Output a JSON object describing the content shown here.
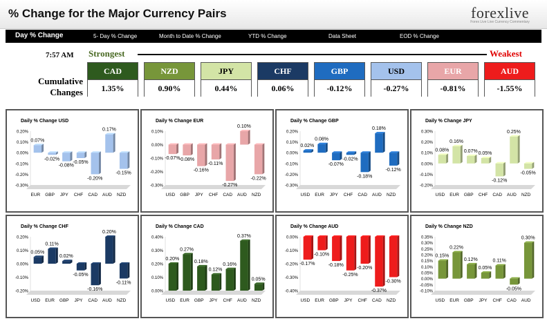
{
  "header": {
    "title": "% Change for the Major Currency Pairs",
    "logo_text": "forexlive",
    "logo_sub": "Forex Live Live Currency Commentary"
  },
  "nav": {
    "items": [
      "Day % Change",
      "5- Day % Change",
      "Month to Date % Change",
      "YTD % Change",
      "Data Sheet",
      "EOD % Change"
    ]
  },
  "summary": {
    "time": "7:57 AM",
    "strongest_label": "Strongest",
    "weakest_label": "Weakest",
    "cumulative_label_1": "Cumulative",
    "cumulative_label_2": "Changes",
    "currencies": [
      {
        "name": "CAD",
        "value": "1.35%",
        "color": "#2e5a1e",
        "text_color": "#ffffff"
      },
      {
        "name": "NZD",
        "value": "0.90%",
        "color": "#77963a",
        "text_color": "#ffffff"
      },
      {
        "name": "JPY",
        "value": "0.44%",
        "color": "#d3e4a6",
        "text_color": "#000000"
      },
      {
        "name": "CHF",
        "value": "0.06%",
        "color": "#1b3a64",
        "text_color": "#ffffff"
      },
      {
        "name": "GBP",
        "value": "-0.12%",
        "color": "#1f6cc0",
        "text_color": "#ffffff"
      },
      {
        "name": "USD",
        "value": "-0.27%",
        "color": "#a4c2ec",
        "text_color": "#000000"
      },
      {
        "name": "EUR",
        "value": "-0.81%",
        "color": "#e8a6a8",
        "text_color": "#ffffff"
      },
      {
        "name": "AUD",
        "value": "-1.55%",
        "color": "#ee1c1c",
        "text_color": "#ffffff"
      }
    ]
  },
  "chart_data": [
    {
      "type": "bar",
      "title": "Daily % Change USD",
      "categories": [
        "EUR",
        "GBP",
        "JPY",
        "CHF",
        "CAD",
        "AUD",
        "NZD"
      ],
      "values": [
        0.07,
        -0.02,
        -0.08,
        -0.05,
        -0.2,
        0.17,
        -0.15
      ],
      "labels": [
        "0.07%",
        "-0.02%",
        "-0.08%",
        "-0.05%",
        "-0.20%",
        "0.17%",
        "-0.15%"
      ],
      "yticks": [
        "0.20%",
        "0.10%",
        "0.00%",
        "-0.10%",
        "-0.20%",
        "-0.30%"
      ],
      "ylim": [
        -0.3,
        0.2
      ],
      "color": "#a4c2ec"
    },
    {
      "type": "bar",
      "title": "Daily % Change EUR",
      "categories": [
        "USD",
        "GBP",
        "JPY",
        "CHF",
        "CAD",
        "AUD",
        "NZD"
      ],
      "values": [
        -0.07,
        -0.08,
        -0.16,
        -0.11,
        -0.27,
        0.1,
        -0.22
      ],
      "labels": [
        "-0.07%",
        "-0.08%",
        "-0.16%",
        "-0.11%",
        "-0.27%",
        "0.10%",
        "-0.22%"
      ],
      "yticks": [
        "0.10%",
        "0.00%",
        "-0.10%",
        "-0.20%",
        "-0.30%"
      ],
      "ylim": [
        -0.3,
        0.1
      ],
      "color": "#e8a6a8"
    },
    {
      "type": "bar",
      "title": "Daily % Change GBP",
      "categories": [
        "USD",
        "EUR",
        "JPY",
        "CHF",
        "CAD",
        "AUD",
        "NZD"
      ],
      "values": [
        0.02,
        0.08,
        -0.07,
        -0.02,
        -0.18,
        0.18,
        -0.12
      ],
      "labels": [
        "0.02%",
        "0.08%",
        "-0.07%",
        "-0.02%",
        "-0.18%",
        "0.18%",
        "-0.12%"
      ],
      "yticks": [
        "0.20%",
        "0.10%",
        "0.00%",
        "-0.10%",
        "-0.20%",
        "-0.30%"
      ],
      "ylim": [
        -0.3,
        0.2
      ],
      "color": "#1f6cc0"
    },
    {
      "type": "bar",
      "title": "Daily % Change JPY",
      "categories": [
        "USD",
        "EUR",
        "GBP",
        "CHF",
        "CAD",
        "AUD",
        "NZD"
      ],
      "values": [
        0.08,
        0.16,
        0.07,
        0.05,
        -0.12,
        0.25,
        -0.05
      ],
      "labels": [
        "0.08%",
        "0.16%",
        "0.07%",
        "0.05%",
        "-0.12%",
        "0.25%",
        "-0.05%"
      ],
      "yticks": [
        "0.30%",
        "0.20%",
        "0.10%",
        "0.00%",
        "-0.10%",
        "-0.20%"
      ],
      "ylim": [
        -0.2,
        0.3
      ],
      "color": "#d3e4a6"
    },
    {
      "type": "bar",
      "title": "Daily % Change CHF",
      "categories": [
        "USD",
        "EUR",
        "GBP",
        "JPY",
        "CAD",
        "AUD",
        "NZD"
      ],
      "values": [
        0.05,
        0.11,
        0.02,
        -0.05,
        -0.16,
        0.2,
        -0.11
      ],
      "labels": [
        "0.05%",
        "0.11%",
        "0.02%",
        "-0.05%",
        "-0.16%",
        "0.20%",
        "-0.11%"
      ],
      "yticks": [
        "0.20%",
        "0.10%",
        "0.00%",
        "-0.10%",
        "-0.20%"
      ],
      "ylim": [
        -0.2,
        0.2
      ],
      "color": "#1b3a64"
    },
    {
      "type": "bar",
      "title": "Daily % Change CAD",
      "categories": [
        "USD",
        "EUR",
        "GBP",
        "JPY",
        "CHF",
        "AUD",
        "NZD"
      ],
      "values": [
        0.2,
        0.27,
        0.18,
        0.12,
        0.16,
        0.37,
        0.05
      ],
      "labels": [
        "0.20%",
        "0.27%",
        "0.18%",
        "0.12%",
        "0.16%",
        "0.37%",
        "0.05%"
      ],
      "yticks": [
        "0.40%",
        "0.30%",
        "0.20%",
        "0.10%",
        "0.00%"
      ],
      "ylim": [
        0,
        0.4
      ],
      "color": "#2e5a1e"
    },
    {
      "type": "bar",
      "title": "Daily % Change AUD",
      "categories": [
        "USD",
        "EUR",
        "GBP",
        "JPY",
        "CHF",
        "CAD",
        "NZD"
      ],
      "values": [
        -0.17,
        -0.1,
        -0.18,
        -0.25,
        -0.2,
        -0.37,
        -0.3
      ],
      "labels": [
        "-0.17%",
        "-0.10%",
        "-0.18%",
        "-0.25%",
        "-0.20%",
        "-0.37%",
        "-0.30%"
      ],
      "yticks": [
        "0.00%",
        "-0.10%",
        "-0.20%",
        "-0.30%",
        "-0.40%"
      ],
      "ylim": [
        -0.4,
        0
      ],
      "color": "#ee1c1c"
    },
    {
      "type": "bar",
      "title": "Daily % Change NZD",
      "categories": [
        "USD",
        "EUR",
        "GBP",
        "JPY",
        "CHF",
        "CAD",
        "AUD"
      ],
      "values": [
        0.15,
        0.22,
        0.12,
        0.05,
        0.11,
        -0.05,
        0.3
      ],
      "labels": [
        "0.15%",
        "0.22%",
        "0.12%",
        "0.05%",
        "0.11%",
        "-0.05%",
        "0.30%"
      ],
      "yticks": [
        "0.35%",
        "0.30%",
        "0.25%",
        "0.20%",
        "0.15%",
        "0.10%",
        "0.05%",
        "0.00%",
        "-0.05%",
        "-0.10%"
      ],
      "ylim": [
        -0.1,
        0.35
      ],
      "color": "#77963a"
    }
  ]
}
